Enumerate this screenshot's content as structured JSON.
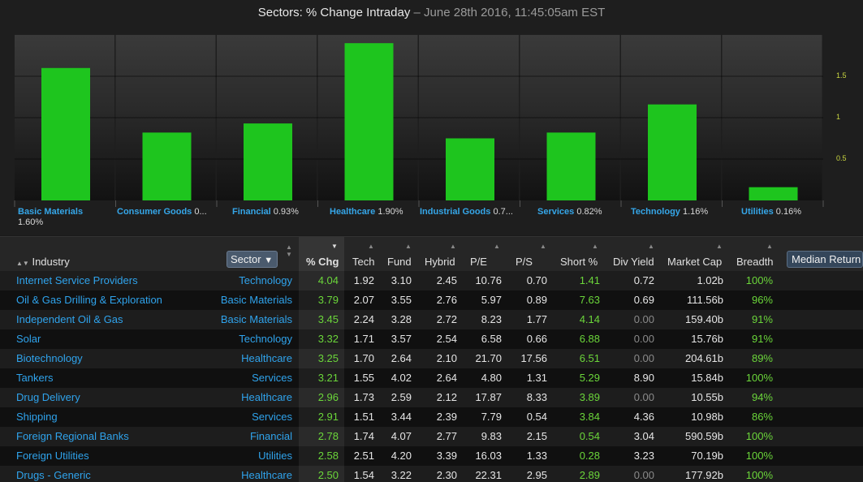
{
  "chart_data": {
    "type": "bar",
    "title": "Sectors: % Change Intraday",
    "subtitle": "June 28th 2016, 11:45:05am EST",
    "categories": [
      "Basic Materials",
      "Consumer Goods",
      "Financial",
      "Healthcare",
      "Industrial Goods",
      "Services",
      "Technology",
      "Utilities"
    ],
    "category_labels": [
      {
        "name": "Basic Materials",
        "value": "1.60%"
      },
      {
        "name": "Consumer Goods",
        "value": "0..."
      },
      {
        "name": "Financial",
        "value": "0.93%"
      },
      {
        "name": "Healthcare",
        "value": "1.90%"
      },
      {
        "name": "Industrial Goods",
        "value": "0.7..."
      },
      {
        "name": "Services",
        "value": "0.82%"
      },
      {
        "name": "Technology",
        "value": "1.16%"
      },
      {
        "name": "Utilities",
        "value": "0.16%"
      }
    ],
    "values": [
      1.6,
      0.82,
      0.93,
      1.9,
      0.75,
      0.82,
      1.16,
      0.16
    ],
    "yticks": [
      "0.5",
      "1",
      "1.5"
    ],
    "ylim": [
      0,
      2.0
    ],
    "bar_color": "#1ec51e",
    "grid": true
  },
  "table": {
    "columns": [
      "Industry",
      "Sector",
      "% Chg",
      "Tech",
      "Fund",
      "Hybrid",
      "P/E",
      "P/S",
      "Short %",
      "Div Yield",
      "Market Cap",
      "Breadth",
      "Median Return"
    ],
    "rows": [
      {
        "industry": "Internet Service Providers",
        "sector": "Technology",
        "chg": "4.04",
        "tech": "1.92",
        "fund": "3.10",
        "hybrid": "2.45",
        "pe": "10.76",
        "ps": "0.70",
        "short": "1.41",
        "div": "0.72",
        "mcap": "1.02b",
        "breadth": "100%"
      },
      {
        "industry": "Oil & Gas Drilling & Exploration",
        "sector": "Basic Materials",
        "chg": "3.79",
        "tech": "2.07",
        "fund": "3.55",
        "hybrid": "2.76",
        "pe": "5.97",
        "ps": "0.89",
        "short": "7.63",
        "div": "0.69",
        "mcap": "111.56b",
        "breadth": "96%"
      },
      {
        "industry": "Independent Oil & Gas",
        "sector": "Basic Materials",
        "chg": "3.45",
        "tech": "2.24",
        "fund": "3.28",
        "hybrid": "2.72",
        "pe": "8.23",
        "ps": "1.77",
        "short": "4.14",
        "div": "0.00",
        "mcap": "159.40b",
        "breadth": "91%"
      },
      {
        "industry": "Solar",
        "sector": "Technology",
        "chg": "3.32",
        "tech": "1.71",
        "fund": "3.57",
        "hybrid": "2.54",
        "pe": "6.58",
        "ps": "0.66",
        "short": "6.88",
        "div": "0.00",
        "mcap": "15.76b",
        "breadth": "91%"
      },
      {
        "industry": "Biotechnology",
        "sector": "Healthcare",
        "chg": "3.25",
        "tech": "1.70",
        "fund": "2.64",
        "hybrid": "2.10",
        "pe": "21.70",
        "ps": "17.56",
        "short": "6.51",
        "div": "0.00",
        "mcap": "204.61b",
        "breadth": "89%"
      },
      {
        "industry": "Tankers",
        "sector": "Services",
        "chg": "3.21",
        "tech": "1.55",
        "fund": "4.02",
        "hybrid": "2.64",
        "pe": "4.80",
        "ps": "1.31",
        "short": "5.29",
        "div": "8.90",
        "mcap": "15.84b",
        "breadth": "100%"
      },
      {
        "industry": "Drug Delivery",
        "sector": "Healthcare",
        "chg": "2.96",
        "tech": "1.73",
        "fund": "2.59",
        "hybrid": "2.12",
        "pe": "17.87",
        "ps": "8.33",
        "short": "3.89",
        "div": "0.00",
        "mcap": "10.55b",
        "breadth": "94%"
      },
      {
        "industry": "Shipping",
        "sector": "Services",
        "chg": "2.91",
        "tech": "1.51",
        "fund": "3.44",
        "hybrid": "2.39",
        "pe": "7.79",
        "ps": "0.54",
        "short": "3.84",
        "div": "4.36",
        "mcap": "10.98b",
        "breadth": "86%"
      },
      {
        "industry": "Foreign Regional Banks",
        "sector": "Financial",
        "chg": "2.78",
        "tech": "1.74",
        "fund": "4.07",
        "hybrid": "2.77",
        "pe": "9.83",
        "ps": "2.15",
        "short": "0.54",
        "div": "3.04",
        "mcap": "590.59b",
        "breadth": "100%"
      },
      {
        "industry": "Foreign Utilities",
        "sector": "Utilities",
        "chg": "2.58",
        "tech": "2.51",
        "fund": "4.20",
        "hybrid": "3.39",
        "pe": "16.03",
        "ps": "1.33",
        "short": "0.28",
        "div": "3.23",
        "mcap": "70.19b",
        "breadth": "100%"
      },
      {
        "industry": "Drugs - Generic",
        "sector": "Healthcare",
        "chg": "2.50",
        "tech": "1.54",
        "fund": "3.22",
        "hybrid": "2.30",
        "pe": "22.31",
        "ps": "2.95",
        "short": "2.89",
        "div": "0.00",
        "mcap": "177.92b",
        "breadth": "100%"
      }
    ]
  },
  "icons": {
    "sort": "sort-arrows-icon",
    "filter": "filter-funnel-icon",
    "sort_desc": "sort-desc-icon"
  },
  "colors": {
    "link": "#2fa3ec",
    "positive": "#6bd63a",
    "bar": "#1ec51e",
    "axis_tick": "#c9d640"
  }
}
